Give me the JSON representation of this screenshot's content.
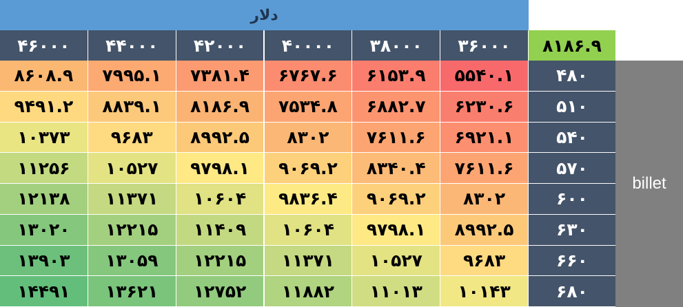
{
  "header": {
    "currency_label": "دلار",
    "corner_value": "۸۱۸۶.۹"
  },
  "columns": [
    "۴۶۰۰۰",
    "۴۴۰۰۰",
    "۴۲۰۰۰",
    "۴۰۰۰۰",
    "۳۸۰۰۰",
    "۳۶۰۰۰"
  ],
  "side_label": "billet",
  "rows": [
    {
      "label": "۴۸۰",
      "cells": [
        "۸۶۰۸.۹",
        "۷۹۹۵.۱",
        "۷۳۸۱.۴",
        "۶۷۶۷.۶",
        "۶۱۵۳.۹",
        "۵۵۴۰.۱"
      ],
      "colors": [
        "#fbb873",
        "#fca972",
        "#fc9b71",
        "#fc8c6f",
        "#fa7d6d",
        "#f8696b"
      ]
    },
    {
      "label": "۵۱۰",
      "cells": [
        "۹۴۹۱.۲",
        "۸۸۳۹.۱",
        "۸۱۸۶.۹",
        "۷۵۳۴.۸",
        "۶۸۸۲.۷",
        "۶۲۳۰.۶"
      ],
      "colors": [
        "#fed980",
        "#fcc87a",
        "#fbb373",
        "#fca472",
        "#fc9470",
        "#fa7e6d"
      ]
    },
    {
      "label": "۵۴۰",
      "cells": [
        "۱۰۳۷۳",
        "۹۶۸۳",
        "۸۹۹۲.۵",
        "۸۳۰۲",
        "۷۶۱۱.۶",
        "۶۹۲۱.۱"
      ],
      "colors": [
        "#eae583",
        "#feda81",
        "#fcc979",
        "#fbb775",
        "#fca572",
        "#fc8f6f"
      ]
    },
    {
      "label": "۵۷۰",
      "cells": [
        "۱۱۲۵۶",
        "۱۰۵۲۷",
        "۹۷۹۸.۱",
        "۹۰۶۹.۲",
        "۸۳۴۰.۴",
        "۷۶۱۱.۶"
      ],
      "colors": [
        "#c4da81",
        "#e3e383",
        "#ffe984",
        "#fdd07b",
        "#fcbb76",
        "#fca572"
      ]
    },
    {
      "label": "۶۰۰",
      "cells": [
        "۱۲۱۳۸",
        "۱۱۳۷۱",
        "۱۰۶۰۴",
        "۹۸۳۶.۴",
        "۹۰۶۹.۲",
        "۸۳۰۲"
      ],
      "colors": [
        "#a3d07f",
        "#c4d981",
        "#e0e283",
        "#feea84",
        "#fdd07b",
        "#fbb775"
      ]
    },
    {
      "label": "۶۳۰",
      "cells": [
        "۱۳۰۲۰",
        "۱۲۲۱۵",
        "۱۱۴۰۹",
        "۱۰۶۰۴",
        "۹۷۹۸.۱",
        "۸۹۹۲.۵"
      ],
      "colors": [
        "#84c77d",
        "#a3d07f",
        "#c3d981",
        "#e0e283",
        "#ffe984",
        "#fcc979"
      ]
    },
    {
      "label": "۶۶۰",
      "cells": [
        "۱۳۹۰۳",
        "۱۳۰۵۹",
        "۱۲۲۱۵",
        "۱۱۳۷۱",
        "۱۰۵۲۷",
        "۹۶۸۳"
      ],
      "colors": [
        "#6cc07b",
        "#84c77d",
        "#a3d07f",
        "#c4d981",
        "#e3e383",
        "#feda81"
      ]
    },
    {
      "label": "۶۸۰",
      "cells": [
        "۱۴۴۹۱",
        "۱۳۶۲۱",
        "۱۲۷۵۲",
        "۱۱۸۸۲",
        "۱۱۰۱۳",
        "۱۰۱۴۳"
      ],
      "colors": [
        "#63be7b",
        "#7ac47c",
        "#92cb7e",
        "#b0d47f",
        "#d1dd82",
        "#f1e784"
      ]
    }
  ]
}
